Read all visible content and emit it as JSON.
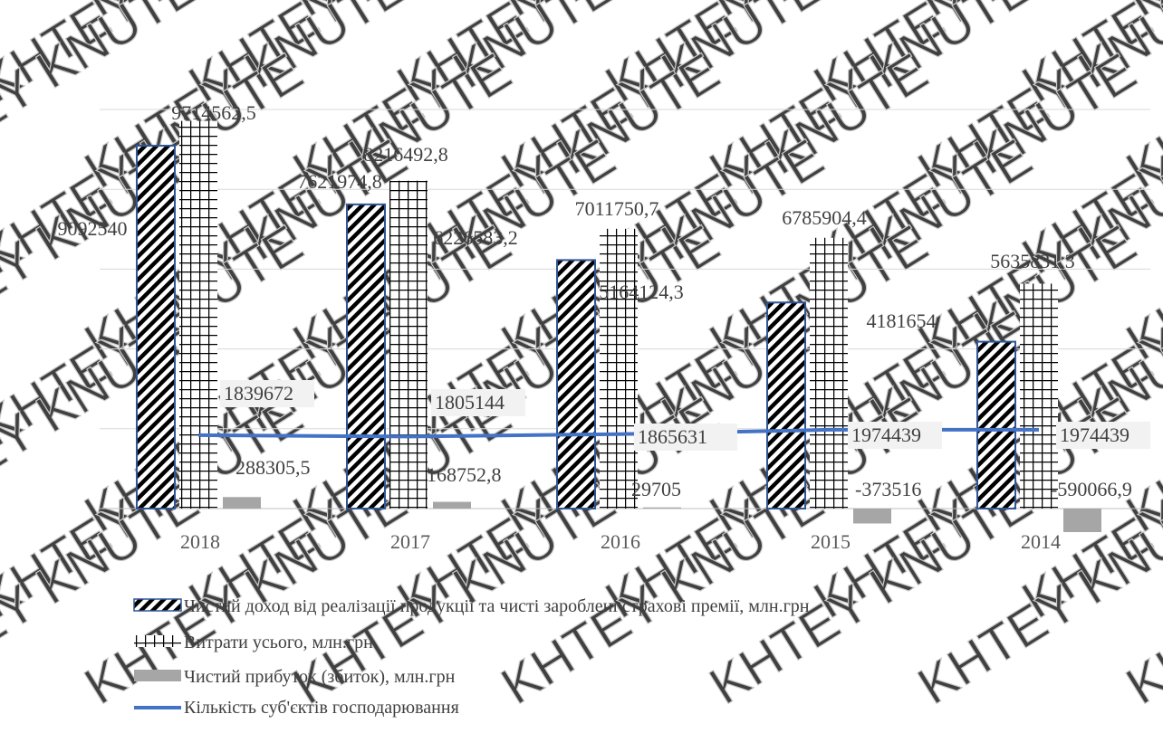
{
  "watermark": {
    "text": "KHTEY KNUTE",
    "color": "#c9c9c9"
  },
  "chart_data": {
    "type": "bar",
    "categories": [
      "2018",
      "2017",
      "2016",
      "2015",
      "2014"
    ],
    "ylim": [
      -1300000,
      11500000
    ],
    "grid": true,
    "legend_position": "bottom-left",
    "series": [
      {
        "name": "Чистий доход від реалізації продукції та  чисті зароблені страхові премії, млн.грн",
        "kind": "bar",
        "pattern": "diagonal-hatch",
        "border_color": "#2f5597",
        "values": [
          9092540,
          7621974.8,
          6226583.2,
          5164124.3,
          4181654
        ],
        "labels": [
          "9092540",
          "7621974,8",
          "6226583,2",
          "5164124,3",
          "4181654"
        ]
      },
      {
        "name": "Витрати усього, млн.грн",
        "kind": "bar",
        "pattern": "grid",
        "values": [
          9714562.5,
          8216492.8,
          7011750.7,
          6785904.4,
          5635831.3
        ],
        "labels": [
          "9714562,5",
          "8216492,8",
          "7011750,7",
          "6785904,4",
          "5635831,3"
        ]
      },
      {
        "name": "Чистий прибуток (збиток), млн.грн",
        "kind": "bar",
        "color": "#a6a6a6",
        "values": [
          288305.5,
          168752.8,
          29705,
          -373516,
          -590066.9
        ],
        "labels": [
          "288305,5",
          "168752,8",
          "29705",
          "-373516",
          "-590066,9"
        ]
      },
      {
        "name": "Кількість суб'єктів господарювання",
        "kind": "line",
        "color": "#4472c4",
        "values": [
          1839672,
          1805144,
          1865631,
          1974439,
          1974439
        ],
        "labels": [
          "1839672",
          "1805144",
          "1865631",
          "1974439",
          "1974439"
        ]
      }
    ]
  }
}
